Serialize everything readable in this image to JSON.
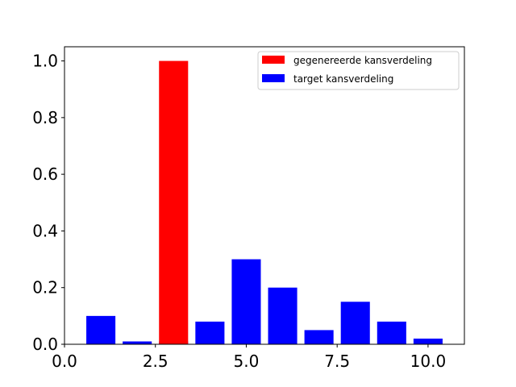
{
  "chart_data": {
    "type": "bar",
    "title": "",
    "xlabel": "",
    "ylabel": "",
    "xlim": [
      0,
      11
    ],
    "ylim": [
      0,
      1.05
    ],
    "x_ticks": [
      0.0,
      2.5,
      5.0,
      7.5,
      10.0
    ],
    "x_tick_labels": [
      "0.0",
      "2.5",
      "5.0",
      "7.5",
      "10.0"
    ],
    "y_ticks": [
      0.0,
      0.2,
      0.4,
      0.6,
      0.8,
      1.0
    ],
    "y_tick_labels": [
      "0.0",
      "0.2",
      "0.4",
      "0.6",
      "0.8",
      "1.0"
    ],
    "bar_width": 0.8,
    "grid": false,
    "legend_position": "top-right",
    "series": [
      {
        "name": "target kansverdeling",
        "color": "#0000ff",
        "x": [
          1,
          2,
          3,
          4,
          5,
          6,
          7,
          8,
          9,
          10
        ],
        "values": [
          0.1,
          0.01,
          0.01,
          0.08,
          0.3,
          0.2,
          0.05,
          0.15,
          0.08,
          0.02
        ]
      },
      {
        "name": "gegenereerde kansverdeling",
        "color": "#ff0000",
        "x": [
          3
        ],
        "values": [
          1.0
        ]
      }
    ],
    "legend_order": [
      "gegenereerde kansverdeling",
      "target kansverdeling"
    ]
  }
}
